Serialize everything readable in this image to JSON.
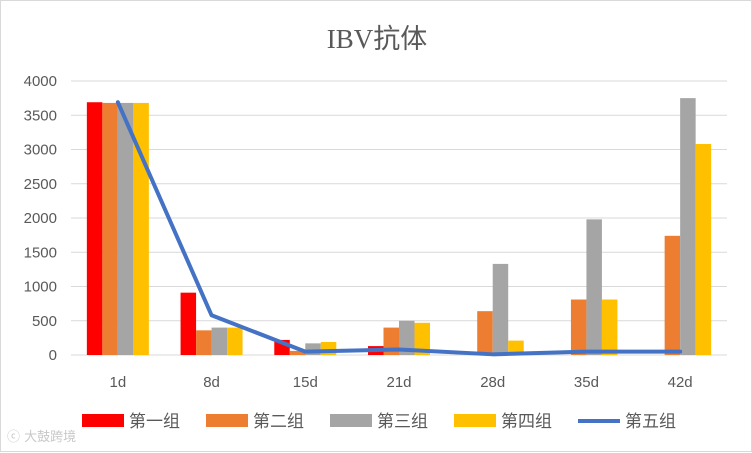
{
  "chart_data": {
    "type": "bar",
    "title": "IBV抗体",
    "categories": [
      "1d",
      "8d",
      "15d",
      "21d",
      "28d",
      "35d",
      "42d"
    ],
    "ylim": [
      0,
      4000
    ],
    "yticks": [
      0,
      500,
      1000,
      1500,
      2000,
      2500,
      3000,
      3500,
      4000
    ],
    "grid": true,
    "legend_position": "bottom",
    "series": [
      {
        "name": "第一组",
        "type": "bar",
        "color": "#ff0000",
        "values": [
          3690,
          910,
          220,
          130,
          0,
          0,
          0
        ]
      },
      {
        "name": "第二组",
        "type": "bar",
        "color": "#ed7d31",
        "values": [
          3680,
          360,
          60,
          400,
          640,
          810,
          1740
        ]
      },
      {
        "name": "第三组",
        "type": "bar",
        "color": "#a5a5a5",
        "values": [
          3680,
          400,
          170,
          500,
          1330,
          1980,
          3750
        ]
      },
      {
        "name": "第四组",
        "type": "bar",
        "color": "#ffc000",
        "values": [
          3680,
          400,
          190,
          470,
          210,
          810,
          3080
        ]
      },
      {
        "name": "第五组",
        "type": "line",
        "color": "#4472c4",
        "values": [
          3690,
          580,
          50,
          80,
          10,
          50,
          50
        ]
      }
    ]
  },
  "watermark": {
    "text": "ⓒ 大鼓跨境"
  }
}
